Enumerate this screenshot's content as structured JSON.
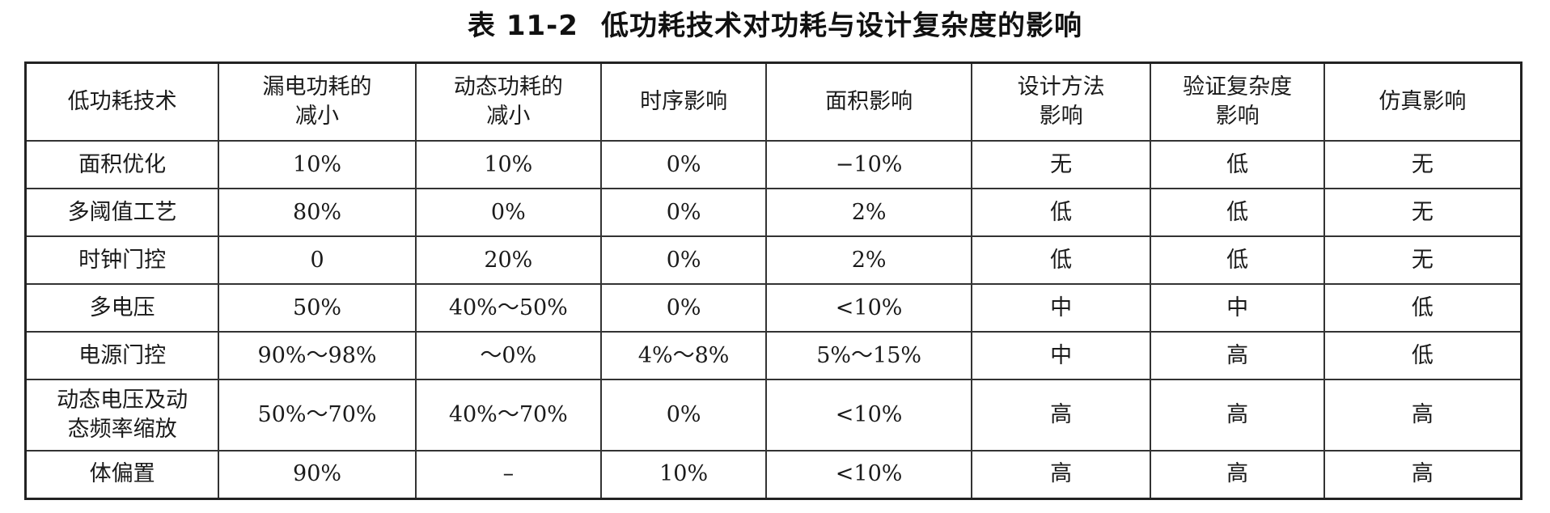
{
  "caption": {
    "number": "表 11-2",
    "title": "低功耗技术对功耗与设计复杂度的影响"
  },
  "table": {
    "headers": [
      "低功耗技术",
      "漏电功耗的\n减小",
      "动态功耗的\n减小",
      "时序影响",
      "面积影响",
      "设计方法\n影响",
      "验证复杂度\n影响",
      "仿真影响"
    ],
    "rows": [
      [
        "面积优化",
        "10%",
        "10%",
        "0%",
        "−10%",
        "无",
        "低",
        "无"
      ],
      [
        "多阈值工艺",
        "80%",
        "0%",
        "0%",
        "2%",
        "低",
        "低",
        "无"
      ],
      [
        "时钟门控",
        "0",
        "20%",
        "0%",
        "2%",
        "低",
        "低",
        "无"
      ],
      [
        "多电压",
        "50%",
        "40%～50%",
        "0%",
        "<10%",
        "中",
        "中",
        "低"
      ],
      [
        "电源门控",
        "90%～98%",
        "～0%",
        "4%～8%",
        "5%～15%",
        "中",
        "高",
        "低"
      ],
      [
        "动态电压及动\n态频率缩放",
        "50%～70%",
        "40%～70%",
        "0%",
        "<10%",
        "高",
        "高",
        "高"
      ],
      [
        "体偏置",
        "90%",
        "–",
        "10%",
        "<10%",
        "高",
        "高",
        "高"
      ]
    ]
  }
}
